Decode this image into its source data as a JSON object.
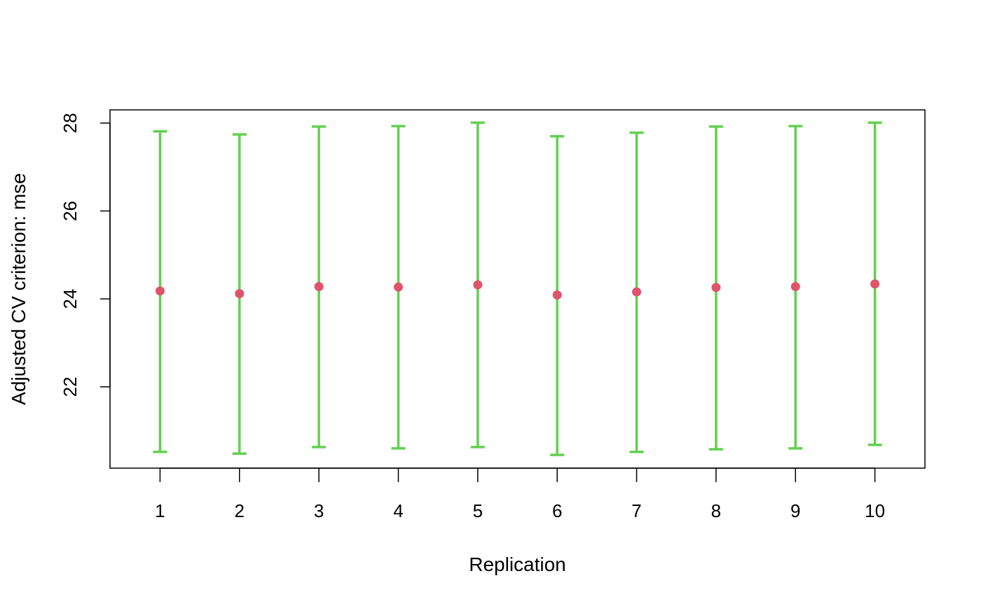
{
  "chart_data": {
    "type": "scatter",
    "subtype": "point-with-error-bars",
    "title": "",
    "xlabel": "Replication",
    "ylabel": "Adjusted CV criterion: mse",
    "x": [
      1,
      2,
      3,
      4,
      5,
      6,
      7,
      8,
      9,
      10
    ],
    "x_tick_labels": [
      "1",
      "2",
      "3",
      "4",
      "5",
      "6",
      "7",
      "8",
      "9",
      "10"
    ],
    "y_ticks": [
      22,
      24,
      26,
      28
    ],
    "y_tick_labels": [
      "22",
      "24",
      "26",
      "28"
    ],
    "xlim": [
      0.37,
      10.63
    ],
    "ylim": [
      20.15,
      28.3
    ],
    "series": [
      {
        "values": [
          24.18,
          24.12,
          24.28,
          24.27,
          24.32,
          24.09,
          24.16,
          24.26,
          24.28,
          24.34
        ],
        "lower": [
          20.52,
          20.48,
          20.63,
          20.6,
          20.63,
          20.45,
          20.52,
          20.58,
          20.6,
          20.68
        ],
        "upper": [
          27.81,
          27.74,
          27.92,
          27.93,
          28.01,
          27.7,
          27.78,
          27.92,
          27.93,
          28.01
        ]
      }
    ],
    "grid": false,
    "legend": "none",
    "colors": {
      "point": "#DF536B",
      "error_bar": "#61D04F",
      "axis": "#000000"
    }
  }
}
